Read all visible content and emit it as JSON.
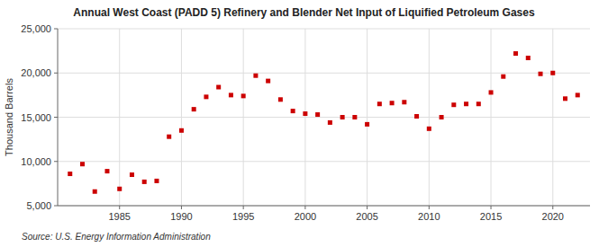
{
  "chart_data": {
    "type": "scatter",
    "title": "Annual West Coast (PADD 5) Refinery and Blender Net Input of Liquified Petroleum Gases",
    "ylabel": "Thousand Barrels",
    "annotations": [
      "Source: U.S. Energy Information Administration"
    ],
    "x": [
      1981,
      1982,
      1983,
      1984,
      1985,
      1986,
      1987,
      1988,
      1989,
      1990,
      1991,
      1992,
      1993,
      1994,
      1995,
      1996,
      1997,
      1998,
      1999,
      2000,
      2001,
      2002,
      2003,
      2004,
      2005,
      2006,
      2007,
      2008,
      2009,
      2010,
      2011,
      2012,
      2013,
      2014,
      2015,
      2016,
      2017,
      2018,
      2019,
      2020,
      2021,
      2022
    ],
    "values": [
      8600,
      9700,
      6600,
      8900,
      6900,
      8500,
      7700,
      7800,
      12800,
      13500,
      15900,
      17300,
      18400,
      17500,
      17400,
      19700,
      19100,
      17000,
      15700,
      15400,
      15300,
      14400,
      15000,
      15000,
      14200,
      16500,
      16600,
      16700,
      15100,
      13700,
      15000,
      16400,
      16500,
      16500,
      17800,
      19600,
      22200,
      21700,
      19900,
      20000,
      17100,
      17500
    ],
    "color": "#cc0000",
    "marker": "square",
    "xlim": [
      1980,
      2023
    ],
    "xticks": [
      1985,
      1990,
      1995,
      2000,
      2005,
      2010,
      2015,
      2020
    ],
    "ylim": [
      5000,
      25000
    ],
    "yticks": [
      {
        "value": 5000,
        "label": "5,000"
      },
      {
        "value": 10000,
        "label": "10,000"
      },
      {
        "value": 15000,
        "label": "15,000"
      },
      {
        "value": 20000,
        "label": "20,000"
      },
      {
        "value": 25000,
        "label": "25,000"
      }
    ],
    "grid": true
  }
}
